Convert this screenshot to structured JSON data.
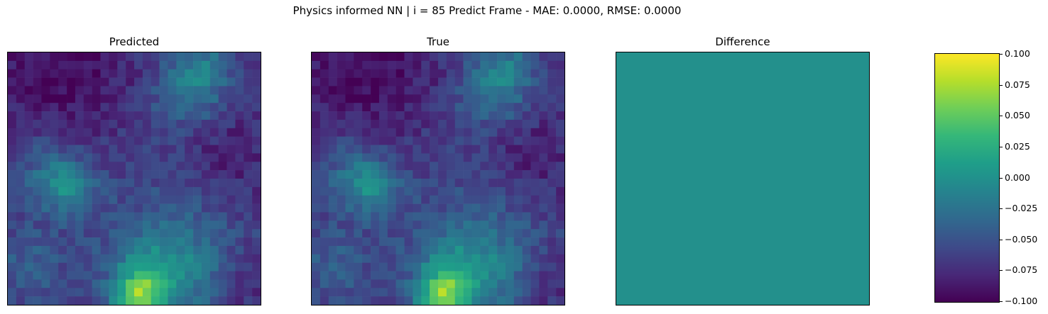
{
  "figure": {
    "title": "Physics informed NN | i = 85 Predict Frame - MAE: 0.0000, RMSE: 0.0000"
  },
  "chart_data": [
    {
      "type": "heatmap",
      "title": "Predicted",
      "grid": "30x30",
      "description_values": "field shown identical to True panel",
      "colormap": "viridis",
      "axes_ticks": "none"
    },
    {
      "type": "heatmap",
      "title": "True",
      "grid": "30x30",
      "colormap": "viridis",
      "axes_ticks": "none"
    },
    {
      "type": "heatmap",
      "title": "Difference",
      "uniform_value": 0.0,
      "colormap": "viridis",
      "axes_ticks": "none"
    }
  ],
  "colorbar": {
    "colormap": "viridis",
    "vmin": -0.1,
    "vmax": 0.1,
    "tick_values": [
      0.1,
      0.075,
      0.05,
      0.025,
      0.0,
      -0.025,
      -0.05,
      -0.075,
      -0.1
    ],
    "tick_labels": [
      "0.100",
      "0.075",
      "0.050",
      "0.025",
      "0.000",
      "−0.025",
      "−0.050",
      "−0.075",
      "−0.100"
    ]
  },
  "colors": {
    "viridis_low": "#440154",
    "viridis_mid": "#21918c",
    "viridis_high": "#fde725"
  }
}
